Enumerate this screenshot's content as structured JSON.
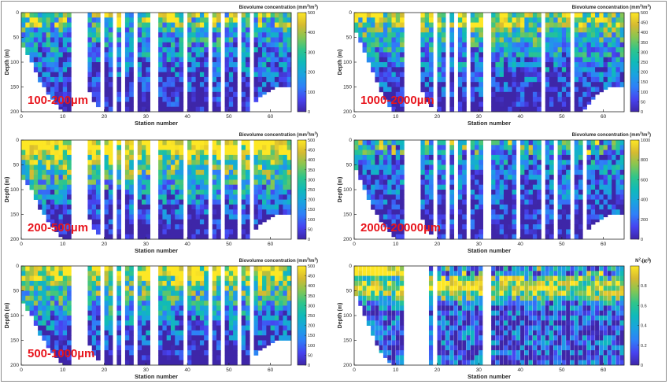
{
  "figure": {
    "border_color": "#8c8c8c",
    "colormap": [
      "#3e26a8",
      "#4743f0",
      "#2f7ff8",
      "#1aa3e0",
      "#0fbaba",
      "#2fc58b",
      "#86c653",
      "#d6ba31",
      "#fde725"
    ],
    "overlay_label_color": "#e8141c"
  },
  "chart_data": [
    {
      "type": "heatmap",
      "id": "p100",
      "overlay_label": "100-200µm",
      "colorbar_title": "Biovolume concentration (mm",
      "colorbar_unit_sup": "3",
      "colorbar_unit_mid": "/m",
      "colorbar_unit_end": ")",
      "xlabel": "Station number",
      "ylabel": "Depth (m)",
      "xlim": [
        0,
        65
      ],
      "ylim": [
        0,
        200
      ],
      "xticks": [
        "0",
        "10",
        "20",
        "30",
        "40",
        "50",
        "60"
      ],
      "yticks": [
        "0",
        "50",
        "100",
        "150",
        "200"
      ],
      "clim": [
        0,
        500
      ],
      "cticks": [
        "0",
        "100",
        "200",
        "300",
        "400",
        "500"
      ],
      "intensity": 0.45,
      "max_depth_by_station": [
        70,
        85,
        100,
        120,
        140,
        150,
        165,
        175,
        185,
        195,
        200,
        200,
        0,
        0,
        0,
        0,
        160,
        180,
        190,
        200,
        200,
        200,
        200,
        200,
        200,
        200,
        200,
        200,
        200,
        200,
        200,
        0,
        0,
        200,
        200,
        200,
        200,
        200,
        200,
        200,
        200,
        200,
        200,
        200,
        200,
        200,
        200,
        200,
        200,
        200,
        200,
        200,
        200,
        200,
        200,
        195,
        180,
        170,
        165,
        160,
        155,
        150,
        150,
        150,
        150
      ],
      "gap_stations": [
        12,
        13,
        14,
        15,
        19,
        22,
        24,
        27,
        31,
        32,
        39,
        45,
        48,
        52,
        55
      ]
    },
    {
      "type": "heatmap",
      "id": "p1000",
      "overlay_label": "1000-2000µm",
      "colorbar_title": "Biovolume concentration (mm",
      "colorbar_unit_sup": "3",
      "colorbar_unit_mid": "/m",
      "colorbar_unit_end": ")",
      "xlabel": "Station number",
      "ylabel": "Depth (m)",
      "xlim": [
        0,
        65
      ],
      "ylim": [
        0,
        200
      ],
      "xticks": [
        "0",
        "10",
        "20",
        "30",
        "40",
        "50",
        "60"
      ],
      "yticks": [
        "0",
        "50",
        "100",
        "150",
        "200"
      ],
      "clim": [
        0,
        500
      ],
      "cticks": [
        "0",
        "50",
        "100",
        "150",
        "200",
        "250",
        "300",
        "350",
        "400",
        "450",
        "500"
      ],
      "intensity": 0.55,
      "max_depth_by_station": [
        40,
        60,
        80,
        100,
        120,
        140,
        160,
        175,
        190,
        200,
        200,
        200,
        0,
        0,
        0,
        0,
        160,
        180,
        190,
        200,
        200,
        200,
        200,
        200,
        200,
        200,
        200,
        200,
        200,
        200,
        200,
        0,
        0,
        200,
        200,
        200,
        200,
        200,
        200,
        200,
        200,
        200,
        200,
        200,
        200,
        200,
        200,
        200,
        200,
        200,
        200,
        200,
        200,
        200,
        200,
        195,
        185,
        175,
        165,
        160,
        155,
        150,
        150,
        150,
        150
      ],
      "gap_stations": [
        13,
        14,
        15,
        19,
        22,
        24,
        27,
        31,
        32,
        45,
        52
      ]
    },
    {
      "type": "heatmap",
      "id": "p200",
      "overlay_label": "200-500µm",
      "colorbar_title": "Biovolume concentration (mm",
      "colorbar_unit_sup": "3",
      "colorbar_unit_mid": "/m",
      "colorbar_unit_end": ")",
      "xlabel": "Station number",
      "ylabel": "Depth (m)",
      "xlim": [
        0,
        65
      ],
      "ylim": [
        0,
        200
      ],
      "xticks": [
        "0",
        "10",
        "20",
        "30",
        "40",
        "50",
        "60"
      ],
      "yticks": [
        "0",
        "50",
        "100",
        "150",
        "200"
      ],
      "clim": [
        0,
        500
      ],
      "cticks": [
        "0",
        "50",
        "100",
        "150",
        "200",
        "250",
        "300",
        "350",
        "400",
        "450",
        "500"
      ],
      "intensity": 0.75,
      "max_depth_by_station": [
        80,
        90,
        100,
        120,
        140,
        150,
        165,
        175,
        185,
        195,
        200,
        200,
        0,
        0,
        0,
        0,
        160,
        180,
        190,
        200,
        200,
        200,
        200,
        200,
        200,
        200,
        200,
        200,
        200,
        200,
        200,
        0,
        0,
        200,
        200,
        200,
        200,
        200,
        200,
        200,
        200,
        200,
        200,
        200,
        200,
        200,
        200,
        200,
        200,
        200,
        200,
        200,
        200,
        200,
        200,
        195,
        180,
        170,
        165,
        160,
        155,
        150,
        150,
        150,
        150
      ],
      "gap_stations": [
        13,
        14,
        15,
        19,
        22,
        24,
        27,
        31,
        32,
        39,
        45,
        48,
        52,
        55
      ]
    },
    {
      "type": "heatmap",
      "id": "p2000",
      "overlay_label": "2000-20000µm",
      "colorbar_title": "Biovolume concentration (mm",
      "colorbar_unit_sup": "3",
      "colorbar_unit_mid": "/m",
      "colorbar_unit_end": ")",
      "xlabel": "Station number",
      "ylabel": "Depth (m)",
      "xlim": [
        0,
        65
      ],
      "ylim": [
        0,
        200
      ],
      "xticks": [
        "0",
        "10",
        "20",
        "30",
        "40",
        "50",
        "60"
      ],
      "yticks": [
        "0",
        "50",
        "100",
        "150",
        "200"
      ],
      "clim": [
        0,
        1000
      ],
      "cticks": [
        "0",
        "200",
        "400",
        "600",
        "800",
        "1000"
      ],
      "intensity": 0.3,
      "max_depth_by_station": [
        60,
        80,
        100,
        120,
        140,
        150,
        165,
        175,
        185,
        195,
        200,
        200,
        0,
        0,
        0,
        0,
        160,
        180,
        190,
        200,
        200,
        200,
        200,
        200,
        200,
        200,
        200,
        200,
        200,
        200,
        200,
        0,
        0,
        200,
        200,
        200,
        200,
        200,
        200,
        200,
        200,
        200,
        200,
        200,
        200,
        200,
        200,
        200,
        200,
        200,
        200,
        200,
        200,
        200,
        200,
        195,
        180,
        170,
        165,
        160,
        155,
        150,
        150,
        150,
        150
      ],
      "gap_stations": [
        13,
        14,
        15,
        19,
        22,
        24,
        27,
        31,
        32,
        39,
        45,
        48,
        52,
        55
      ]
    },
    {
      "type": "heatmap",
      "id": "p500",
      "overlay_label": "500-1000µm",
      "colorbar_title": "Biovolume concentration (mm",
      "colorbar_unit_sup": "3",
      "colorbar_unit_mid": "/m",
      "colorbar_unit_end": ")",
      "xlabel": "Station number",
      "ylabel": "Depth (m)",
      "xlim": [
        0,
        65
      ],
      "ylim": [
        0,
        200
      ],
      "xticks": [
        "0",
        "10",
        "20",
        "30",
        "40",
        "50",
        "60"
      ],
      "yticks": [
        "0",
        "50",
        "100",
        "150",
        "200"
      ],
      "clim": [
        0,
        500
      ],
      "cticks": [
        "0",
        "50",
        "100",
        "150",
        "200",
        "250",
        "300",
        "350",
        "400",
        "450",
        "500"
      ],
      "intensity": 0.65,
      "max_depth_by_station": [
        75,
        90,
        100,
        120,
        140,
        150,
        165,
        175,
        185,
        195,
        200,
        200,
        0,
        0,
        0,
        0,
        160,
        180,
        190,
        200,
        200,
        200,
        200,
        200,
        200,
        200,
        200,
        200,
        200,
        200,
        200,
        0,
        0,
        200,
        200,
        200,
        200,
        200,
        200,
        200,
        200,
        200,
        200,
        200,
        200,
        200,
        200,
        200,
        200,
        200,
        200,
        200,
        200,
        200,
        200,
        195,
        180,
        170,
        165,
        160,
        155,
        150,
        150,
        150,
        150
      ],
      "gap_stations": [
        13,
        14,
        15,
        19,
        22,
        24,
        27,
        31,
        32,
        39,
        45,
        48,
        52,
        55
      ]
    },
    {
      "type": "heatmap",
      "id": "pN2",
      "overlay_label": "",
      "colorbar_title": "N",
      "colorbar_unit_sup": "2",
      "colorbar_unit_mid": " (s",
      "colorbar_unit_end": ")",
      "colorbar_unit_sup2": "-2",
      "colorbar_exponent": "×10",
      "colorbar_exponent_sup": "-3",
      "xlabel": "Station number",
      "ylabel": "Depth (m)",
      "xlim": [
        0,
        65
      ],
      "ylim": [
        0,
        200
      ],
      "xticks": [
        "0",
        "10",
        "20",
        "30",
        "40",
        "50",
        "60"
      ],
      "yticks": [
        "0",
        "50",
        "100",
        "150",
        "200"
      ],
      "clim": [
        0,
        1
      ],
      "cticks": [
        "0",
        "0.2",
        "0.4",
        "0.6",
        "0.8"
      ],
      "intensity": 0.35,
      "max_depth_by_station": [
        60,
        80,
        100,
        120,
        140,
        160,
        175,
        185,
        195,
        200,
        200,
        200,
        0,
        0,
        0,
        0,
        0,
        0,
        200,
        0,
        200,
        200,
        200,
        200,
        200,
        200,
        200,
        200,
        200,
        200,
        200,
        0,
        0,
        200,
        200,
        200,
        200,
        200,
        200,
        200,
        200,
        200,
        200,
        200,
        200,
        200,
        200,
        200,
        200,
        200,
        200,
        200,
        200,
        200,
        200,
        200,
        200,
        200,
        200,
        200,
        200,
        200,
        200,
        200,
        200
      ],
      "gap_stations": [
        13,
        14,
        15,
        16,
        17,
        19,
        31,
        32
      ],
      "banded": true
    }
  ]
}
